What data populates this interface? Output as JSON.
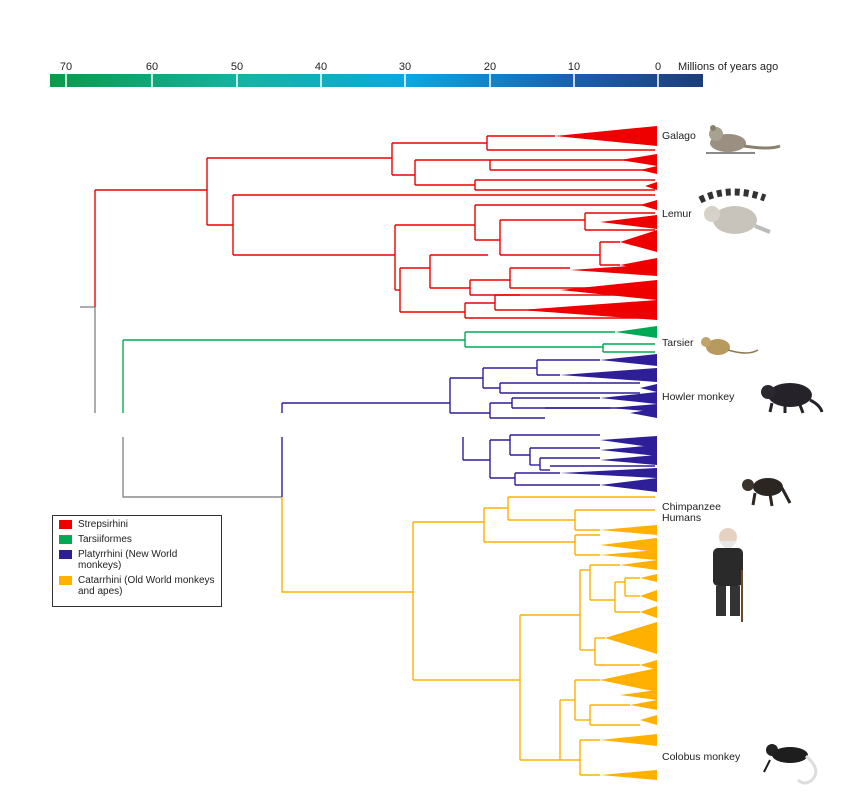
{
  "timescale": {
    "ticks": [
      "70",
      "60",
      "50",
      "40",
      "30",
      "20",
      "10",
      "0"
    ],
    "unit_label": "Millions of years ago"
  },
  "colors": {
    "strepsirhini": "#ee0000",
    "tarsiiformes": "#00aa55",
    "platyrrhini": "#2e1f99",
    "catarrhini": "#ffb000",
    "root": "#8a8a8a"
  },
  "taxa": {
    "galago": "Galago",
    "lemur": "Lemur",
    "tarsier": "Tarsier",
    "howler": "Howler monkey",
    "chimp": "Chimpanzee",
    "humans": "Humans",
    "colobus": "Colobus monkey"
  },
  "legend": [
    {
      "label": "Strepsirhini",
      "color": "#ee0000"
    },
    {
      "label": "Tarsiiformes",
      "color": "#00aa55"
    },
    {
      "label": "Platyrrhini (New World monkeys)",
      "color": "#2e1f99"
    },
    {
      "label": "Catarrhini (Old World monkeys and apes)",
      "color": "#ffb000"
    }
  ]
}
